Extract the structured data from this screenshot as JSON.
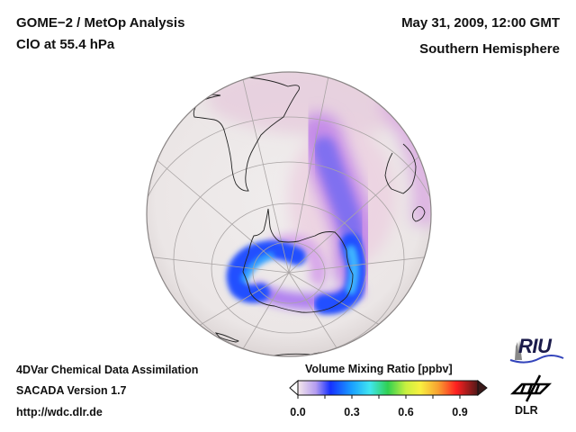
{
  "header": {
    "title": "GOME−2 / MetOp Analysis",
    "subtitle": "ClO at 55.4 hPa",
    "date": "May 31, 2009, 12:00 GMT",
    "hemisphere": "Southern Hemisphere"
  },
  "footer": {
    "line1": "4DVar Chemical Data Assimilation",
    "line2": "SACADA Version 1.7",
    "line3": "http://wdc.dlr.de"
  },
  "map": {
    "projection": "orthographic",
    "view": "Southern Hemisphere",
    "quantity": "ClO",
    "pressure_level": "55.4 hPa",
    "colors": {
      "background": "#ece8e8",
      "low_pink": "#f1dde4",
      "violet": "#c58ce8",
      "blue": "#4455ff",
      "cyan": "#33aaff",
      "coastline": "#222222",
      "graticule": "#aaaaaa"
    }
  },
  "colorbar": {
    "title": "Volume Mixing Ratio [ppbv]",
    "range": [
      0.0,
      1.0
    ],
    "tick_labels": [
      "0.0",
      "0.3",
      "0.6",
      "0.9"
    ],
    "tick_values": [
      0.0,
      0.3,
      0.6,
      0.9
    ],
    "minor_ticks": [
      0.15,
      0.45,
      0.75
    ],
    "extend": "both",
    "stops": [
      {
        "v": 0.0,
        "c": "#f4e8ea"
      },
      {
        "v": 0.1,
        "c": "#b49cf0"
      },
      {
        "v": 0.18,
        "c": "#1530ff"
      },
      {
        "v": 0.3,
        "c": "#1aa0ff"
      },
      {
        "v": 0.4,
        "c": "#40e6f0"
      },
      {
        "v": 0.5,
        "c": "#30d050"
      },
      {
        "v": 0.6,
        "c": "#c8f040"
      },
      {
        "v": 0.68,
        "c": "#f8f040"
      },
      {
        "v": 0.78,
        "c": "#f8a030"
      },
      {
        "v": 0.88,
        "c": "#ff2020"
      },
      {
        "v": 1.0,
        "c": "#501818"
      }
    ]
  },
  "logos": {
    "riu": "RIU",
    "dlr": "DLR"
  }
}
